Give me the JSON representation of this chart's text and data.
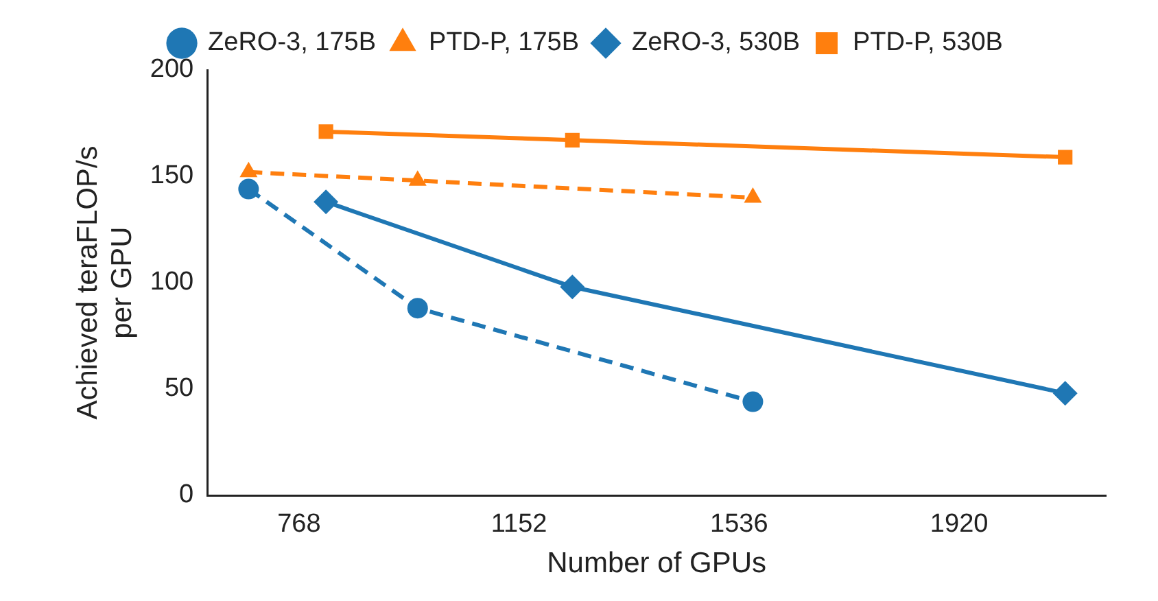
{
  "chart_data": {
    "type": "line",
    "xlabel": "Number of GPUs",
    "ylabel": "Achieved teraFLOP/s\nper GPU",
    "xlim": [
      608,
      2176
    ],
    "xticks": [
      768,
      1152,
      1536,
      1920
    ],
    "ylim": [
      0,
      200
    ],
    "yticks": [
      0,
      50,
      100,
      150,
      200
    ],
    "grid": false,
    "legend": "top",
    "series": [
      {
        "name": "ZeRO-3, 175B",
        "color": "#1f77b4",
        "marker": "circle",
        "line_style": "dashed",
        "x": [
          680,
          975,
          1560
        ],
        "values": [
          144,
          88,
          44
        ]
      },
      {
        "name": "PTD-P, 175B",
        "color": "#ff7f0e",
        "marker": "triangle",
        "line_style": "dashed",
        "x": [
          680,
          975,
          1560
        ],
        "values": [
          152,
          148,
          140
        ]
      },
      {
        "name": "ZeRO-3, 530B",
        "color": "#1f77b4",
        "marker": "diamond",
        "line_style": "solid",
        "x": [
          815,
          1245,
          2105
        ],
        "values": [
          138,
          98,
          48
        ]
      },
      {
        "name": "PTD-P, 530B",
        "color": "#ff7f0e",
        "marker": "square",
        "line_style": "solid",
        "x": [
          815,
          1245,
          2105
        ],
        "values": [
          171,
          167,
          159
        ]
      }
    ]
  }
}
